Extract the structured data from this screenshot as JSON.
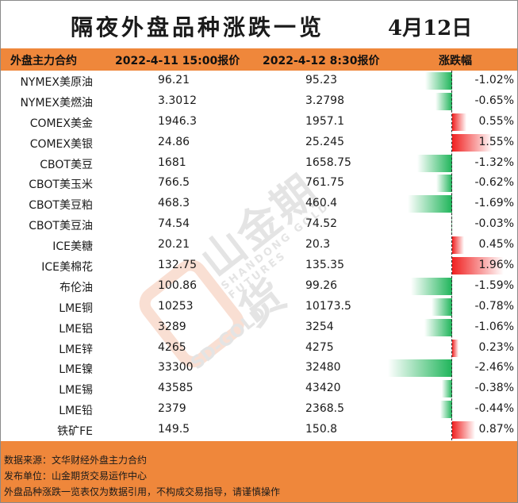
{
  "title": "隔夜外盘品种涨跌一览",
  "date": "4月12日",
  "headers": {
    "name": "外盘主力合约",
    "price1": "2022-4-11 15:00报价",
    "price2": "2022-4-12 8:30报价",
    "change": "涨跌幅"
  },
  "colors": {
    "header_bg": "#ef873b",
    "negative": "#1fb55a",
    "positive": "#f02020"
  },
  "rows": [
    {
      "name": "NYMEX美原油",
      "p1": "96.21",
      "p2": "95.23",
      "pct": "-1.02%",
      "value": -1.02
    },
    {
      "name": "NYMEX美燃油",
      "p1": "3.3012",
      "p2": "3.2798",
      "pct": "-0.65%",
      "value": -0.65
    },
    {
      "name": "COMEX美金",
      "p1": "1946.3",
      "p2": "1957.1",
      "pct": "0.55%",
      "value": 0.55
    },
    {
      "name": "COMEX美银",
      "p1": "24.86",
      "p2": "25.245",
      "pct": "1.55%",
      "value": 1.55
    },
    {
      "name": "CBOT美豆",
      "p1": "1681",
      "p2": "1658.75",
      "pct": "-1.32%",
      "value": -1.32
    },
    {
      "name": "CBOT美玉米",
      "p1": "766.5",
      "p2": "761.75",
      "pct": "-0.62%",
      "value": -0.62
    },
    {
      "name": "CBOT美豆粕",
      "p1": "468.3",
      "p2": "460.4",
      "pct": "-1.69%",
      "value": -1.69
    },
    {
      "name": "CBOT美豆油",
      "p1": "74.54",
      "p2": "74.52",
      "pct": "-0.03%",
      "value": -0.03
    },
    {
      "name": "ICE美糖",
      "p1": "20.21",
      "p2": "20.3",
      "pct": "0.45%",
      "value": 0.45
    },
    {
      "name": "ICE美棉花",
      "p1": "132.75",
      "p2": "135.35",
      "pct": "1.96%",
      "value": 1.96
    },
    {
      "name": "布伦油",
      "p1": "100.86",
      "p2": "99.26",
      "pct": "-1.59%",
      "value": -1.59
    },
    {
      "name": "LME铜",
      "p1": "10253",
      "p2": "10173.5",
      "pct": "-0.78%",
      "value": -0.78
    },
    {
      "name": "LME铝",
      "p1": "3289",
      "p2": "3254",
      "pct": "-1.06%",
      "value": -1.06
    },
    {
      "name": "LME锌",
      "p1": "4265",
      "p2": "4275",
      "pct": "0.23%",
      "value": 0.23
    },
    {
      "name": "LME镍",
      "p1": "33300",
      "p2": "32480",
      "pct": "-2.46%",
      "value": -2.46
    },
    {
      "name": "LME锡",
      "p1": "43585",
      "p2": "43420",
      "pct": "-0.38%",
      "value": -0.38
    },
    {
      "name": "LME铅",
      "p1": "2379",
      "p2": "2368.5",
      "pct": "-0.44%",
      "value": -0.44
    },
    {
      "name": "铁矿FE",
      "p1": "149.5",
      "p2": "150.8",
      "pct": "0.87%",
      "value": 0.87
    }
  ],
  "watermark": {
    "name_cn": "山金期货",
    "name_en": "SHANDONG GOLD FUTURES",
    "code": "SD-GOLD"
  },
  "footer": {
    "source": "数据来源：文华财经外盘主力合约",
    "publisher": "发布单位：山金期货交易运作中心",
    "disclaimer": "外盘品种涨跌一览表仅为数据引用，不构成交易指导，请谨慎操作"
  }
}
